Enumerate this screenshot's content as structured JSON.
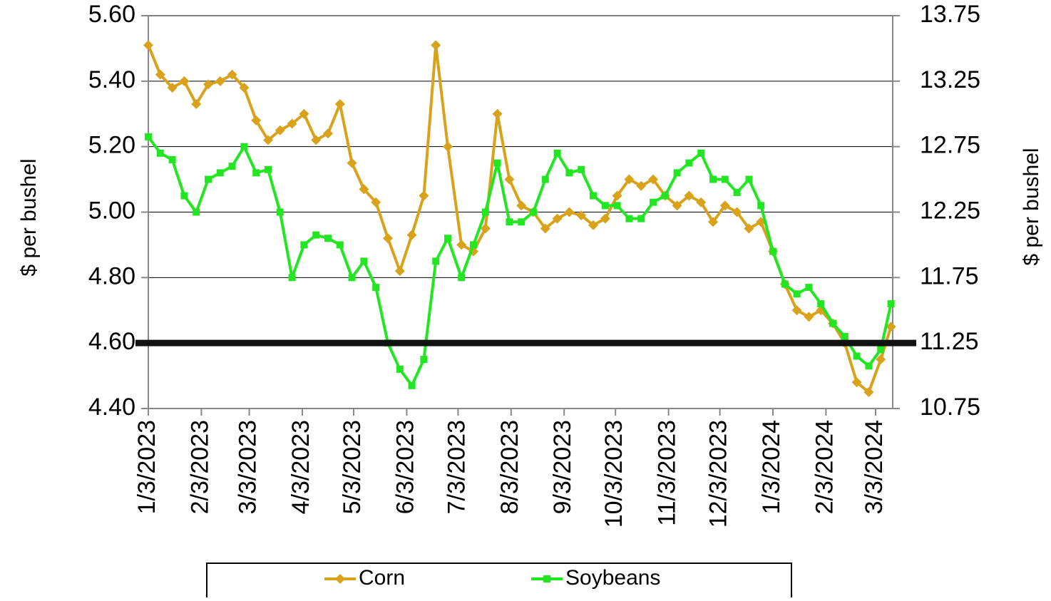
{
  "chart_data": {
    "type": "line",
    "y_label": "$ per bushel",
    "y2_label": "$ per bushel",
    "x": [
      "1/3/2023",
      "1/10/2023",
      "1/17/2023",
      "1/24/2023",
      "1/31/2023",
      "2/7/2023",
      "2/14/2023",
      "2/21/2023",
      "2/28/2023",
      "3/7/2023",
      "3/14/2023",
      "3/21/2023",
      "3/28/2023",
      "4/4/2023",
      "4/11/2023",
      "4/18/2023",
      "4/25/2023",
      "5/2/2023",
      "5/9/2023",
      "5/16/2023",
      "5/23/2023",
      "5/30/2023",
      "6/6/2023",
      "6/13/2023",
      "6/20/2023",
      "6/27/2023",
      "7/5/2023",
      "7/12/2023",
      "7/19/2023",
      "7/26/2023",
      "8/2/2023",
      "8/9/2023",
      "8/16/2023",
      "8/23/2023",
      "8/30/2023",
      "9/6/2023",
      "9/13/2023",
      "9/20/2023",
      "9/27/2023",
      "10/4/2023",
      "10/11/2023",
      "10/18/2023",
      "10/25/2023",
      "11/1/2023",
      "11/8/2023",
      "11/15/2023",
      "11/22/2023",
      "11/29/2023",
      "12/6/2023",
      "12/13/2023",
      "12/20/2023",
      "12/27/2023",
      "1/3/2024",
      "1/10/2024",
      "1/17/2024",
      "1/24/2024",
      "1/31/2024",
      "2/7/2024",
      "2/14/2024",
      "2/21/2024",
      "2/28/2024",
      "3/6/2024",
      "3/12/2024"
    ],
    "series": [
      {
        "name": "Corn",
        "color": "#d9a21b",
        "marker": "diamond",
        "axis": "y",
        "values": [
          5.51,
          5.42,
          5.38,
          5.4,
          5.33,
          5.39,
          5.4,
          5.42,
          5.38,
          5.28,
          5.22,
          5.25,
          5.27,
          5.3,
          5.22,
          5.24,
          5.33,
          5.15,
          5.07,
          5.03,
          4.92,
          4.82,
          4.93,
          5.05,
          5.51,
          5.2,
          4.9,
          4.88,
          4.95,
          5.3,
          5.1,
          5.02,
          5.0,
          4.95,
          4.98,
          5.0,
          4.99,
          4.96,
          4.98,
          5.05,
          5.1,
          5.08,
          5.1,
          5.05,
          5.02,
          5.05,
          5.03,
          4.97,
          5.02,
          5.0,
          4.95,
          4.97,
          4.88,
          4.78,
          4.7,
          4.68,
          4.7,
          4.66,
          4.6,
          4.48,
          4.45,
          4.55,
          4.65
        ]
      },
      {
        "name": "Soybeans",
        "color": "#22e622",
        "marker": "square",
        "axis": "y2",
        "values": [
          12.825,
          12.7,
          12.65,
          12.375,
          12.25,
          12.5,
          12.55,
          12.6,
          12.75,
          12.55,
          12.575,
          12.25,
          11.75,
          12.0,
          12.075,
          12.05,
          12.0,
          11.75,
          11.875,
          11.675,
          11.25,
          11.05,
          10.925,
          11.125,
          11.875,
          12.05,
          11.75,
          12.0,
          12.25,
          12.625,
          12.175,
          12.175,
          12.25,
          12.5,
          12.7,
          12.55,
          12.575,
          12.375,
          12.3,
          12.3,
          12.2,
          12.2,
          12.325,
          12.375,
          12.55,
          12.625,
          12.7,
          12.5,
          12.5,
          12.4,
          12.5,
          12.3,
          11.95,
          11.7,
          11.625,
          11.675,
          11.55,
          11.4,
          11.3,
          11.15,
          11.075,
          11.2,
          11.55
        ]
      }
    ],
    "xlim": [
      "1/3/2023",
      "3/13/2024"
    ],
    "xticks": [
      "1/3/2023",
      "2/3/2023",
      "3/3/2023",
      "4/3/2023",
      "5/3/2023",
      "6/3/2023",
      "7/3/2023",
      "8/3/2023",
      "9/3/2023",
      "10/3/2023",
      "11/3/2023",
      "12/3/2023",
      "1/3/2024",
      "2/3/2024",
      "3/3/2024"
    ],
    "ylim": [
      4.4,
      5.6
    ],
    "yticks": [
      {
        "value": 4.4,
        "label": "4.40"
      },
      {
        "value": 4.6,
        "label": "4.60"
      },
      {
        "value": 4.8,
        "label": "4.80"
      },
      {
        "value": 5.0,
        "label": "5.00"
      },
      {
        "value": 5.2,
        "label": "5.20"
      },
      {
        "value": 5.4,
        "label": "5.40"
      },
      {
        "value": 5.6,
        "label": "5.60"
      }
    ],
    "y2lim": [
      10.75,
      13.75
    ],
    "y2ticks": [
      10.75,
      11.25,
      11.75,
      12.25,
      12.75,
      13.25,
      13.75
    ],
    "grid": true,
    "hline": {
      "value": 4.6,
      "color": "#111111"
    },
    "legend": "bottom"
  }
}
